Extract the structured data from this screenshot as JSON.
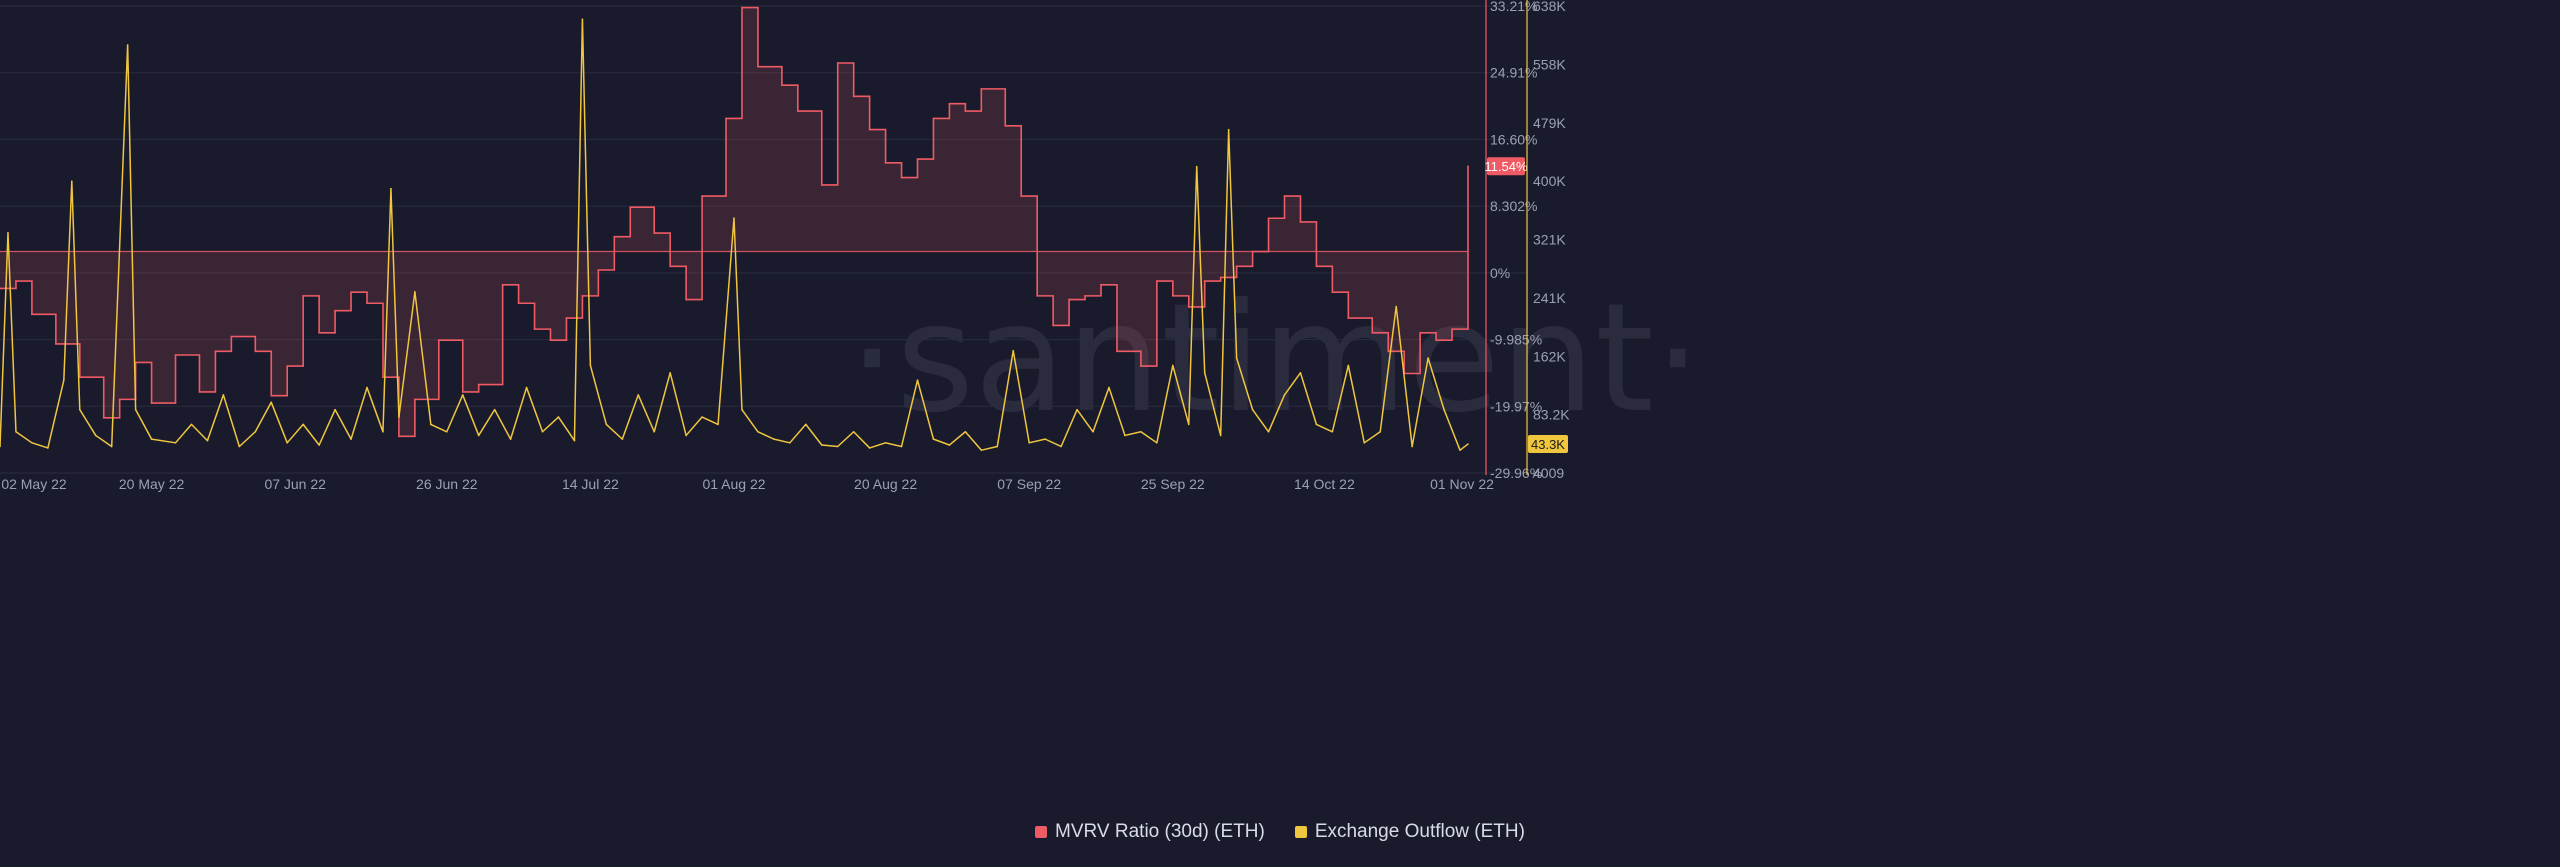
{
  "chart_data": {
    "type": "line",
    "watermark": "·santiment·",
    "x": [
      "02 May 22",
      "20 May 22",
      "07 Jun 22",
      "26 Jun 22",
      "14 Jul 22",
      "01 Aug 22",
      "20 Aug 22",
      "07 Sep 22",
      "25 Sep 22",
      "14 Oct 22",
      "01 Nov 22"
    ],
    "x_start": "2022-05-01",
    "x_end": "2022-11-01",
    "series": [
      {
        "name": "MVRV Ratio (30d) (ETH)",
        "axis": "left-scale",
        "color": "#ef5b65",
        "style": "stepped area, fill toward zero",
        "current_label": "11.54%",
        "ylim": [
          -29.96,
          33.21
        ],
        "ticks": [
          "33.21%",
          "24.91%",
          "16.60%",
          "8.302%",
          "0%",
          "-9.985%",
          "-19.97%",
          "-29.96%"
        ],
        "points": [
          [
            "2022-05-01",
            -5.0
          ],
          [
            "2022-05-03",
            -4.0
          ],
          [
            "2022-05-05",
            -8.5
          ],
          [
            "2022-05-08",
            -12.5
          ],
          [
            "2022-05-11",
            -17.0
          ],
          [
            "2022-05-14",
            -22.5
          ],
          [
            "2022-05-16",
            -20.0
          ],
          [
            "2022-05-18",
            -15.0
          ],
          [
            "2022-05-20",
            -20.5
          ],
          [
            "2022-05-23",
            -14.0
          ],
          [
            "2022-05-26",
            -19.0
          ],
          [
            "2022-05-28",
            -13.5
          ],
          [
            "2022-05-30",
            -11.5
          ],
          [
            "2022-06-02",
            -13.5
          ],
          [
            "2022-06-04",
            -19.5
          ],
          [
            "2022-06-06",
            -15.5
          ],
          [
            "2022-06-08",
            -6.0
          ],
          [
            "2022-06-10",
            -11.0
          ],
          [
            "2022-06-12",
            -8.0
          ],
          [
            "2022-06-14",
            -5.5
          ],
          [
            "2022-06-16",
            -7.0
          ],
          [
            "2022-06-18",
            -17.0
          ],
          [
            "2022-06-20",
            -25.0
          ],
          [
            "2022-06-22",
            -20.0
          ],
          [
            "2022-06-25",
            -12.0
          ],
          [
            "2022-06-28",
            -19.0
          ],
          [
            "2022-06-30",
            -18.0
          ],
          [
            "2022-07-03",
            -4.5
          ],
          [
            "2022-07-05",
            -7.0
          ],
          [
            "2022-07-07",
            -10.5
          ],
          [
            "2022-07-09",
            -12.0
          ],
          [
            "2022-07-11",
            -9.0
          ],
          [
            "2022-07-13",
            -6.0
          ],
          [
            "2022-07-15",
            -2.5
          ],
          [
            "2022-07-17",
            2.0
          ],
          [
            "2022-07-19",
            6.0
          ],
          [
            "2022-07-22",
            2.5
          ],
          [
            "2022-07-24",
            -2.0
          ],
          [
            "2022-07-26",
            -6.5
          ],
          [
            "2022-07-28",
            7.5
          ],
          [
            "2022-07-31",
            18.0
          ],
          [
            "2022-08-02",
            33.0
          ],
          [
            "2022-08-04",
            25.0
          ],
          [
            "2022-08-07",
            22.5
          ],
          [
            "2022-08-09",
            19.0
          ],
          [
            "2022-08-12",
            9.0
          ],
          [
            "2022-08-14",
            25.5
          ],
          [
            "2022-08-16",
            21.0
          ],
          [
            "2022-08-18",
            16.5
          ],
          [
            "2022-08-20",
            12.0
          ],
          [
            "2022-08-22",
            10.0
          ],
          [
            "2022-08-24",
            12.5
          ],
          [
            "2022-08-26",
            18.0
          ],
          [
            "2022-08-28",
            20.0
          ],
          [
            "2022-08-30",
            19.0
          ],
          [
            "2022-09-01",
            22.0
          ],
          [
            "2022-09-04",
            17.0
          ],
          [
            "2022-09-06",
            7.5
          ],
          [
            "2022-09-08",
            -6.0
          ],
          [
            "2022-09-10",
            -10.0
          ],
          [
            "2022-09-12",
            -6.5
          ],
          [
            "2022-09-14",
            -6.0
          ],
          [
            "2022-09-16",
            -4.5
          ],
          [
            "2022-09-18",
            -13.5
          ],
          [
            "2022-09-21",
            -15.5
          ],
          [
            "2022-09-23",
            -4.0
          ],
          [
            "2022-09-25",
            -6.0
          ],
          [
            "2022-09-27",
            -7.5
          ],
          [
            "2022-09-29",
            -4.0
          ],
          [
            "2022-10-01",
            -3.5
          ],
          [
            "2022-10-03",
            -2.0
          ],
          [
            "2022-10-05",
            0.0
          ],
          [
            "2022-10-07",
            4.5
          ],
          [
            "2022-10-09",
            7.5
          ],
          [
            "2022-10-11",
            4.0
          ],
          [
            "2022-10-13",
            -2.0
          ],
          [
            "2022-10-15",
            -5.5
          ],
          [
            "2022-10-17",
            -9.0
          ],
          [
            "2022-10-20",
            -11.0
          ],
          [
            "2022-10-22",
            -13.5
          ],
          [
            "2022-10-24",
            -16.5
          ],
          [
            "2022-10-26",
            -11.0
          ],
          [
            "2022-10-28",
            -12.0
          ],
          [
            "2022-10-30",
            -10.5
          ],
          [
            "2022-11-01",
            11.54
          ]
        ]
      },
      {
        "name": "Exchange Outflow (ETH)",
        "axis": "right-scale",
        "color": "#f0c63e",
        "style": "line",
        "current_label": "43.3K",
        "ylim": [
          4009,
          638000
        ],
        "ticks": [
          "638K",
          "558K",
          "479K",
          "400K",
          "321K",
          "241K",
          "162K",
          "83.2K",
          "4009"
        ],
        "points": [
          [
            "2022-05-01",
            40000
          ],
          [
            "2022-05-02",
            330000
          ],
          [
            "2022-05-03",
            60000
          ],
          [
            "2022-05-05",
            45000
          ],
          [
            "2022-05-07",
            38000
          ],
          [
            "2022-05-09",
            130000
          ],
          [
            "2022-05-10",
            400000
          ],
          [
            "2022-05-11",
            90000
          ],
          [
            "2022-05-13",
            55000
          ],
          [
            "2022-05-15",
            40000
          ],
          [
            "2022-05-17",
            585000
          ],
          [
            "2022-05-18",
            90000
          ],
          [
            "2022-05-20",
            50000
          ],
          [
            "2022-05-23",
            45000
          ],
          [
            "2022-05-25",
            70000
          ],
          [
            "2022-05-27",
            48000
          ],
          [
            "2022-05-29",
            110000
          ],
          [
            "2022-05-31",
            40000
          ],
          [
            "2022-06-02",
            60000
          ],
          [
            "2022-06-04",
            100000
          ],
          [
            "2022-06-06",
            45000
          ],
          [
            "2022-06-08",
            70000
          ],
          [
            "2022-06-10",
            42000
          ],
          [
            "2022-06-12",
            90000
          ],
          [
            "2022-06-14",
            50000
          ],
          [
            "2022-06-16",
            120000
          ],
          [
            "2022-06-18",
            60000
          ],
          [
            "2022-06-19",
            390000
          ],
          [
            "2022-06-20",
            80000
          ],
          [
            "2022-06-22",
            250000
          ],
          [
            "2022-06-24",
            70000
          ],
          [
            "2022-06-26",
            60000
          ],
          [
            "2022-06-28",
            110000
          ],
          [
            "2022-06-30",
            55000
          ],
          [
            "2022-07-02",
            90000
          ],
          [
            "2022-07-04",
            50000
          ],
          [
            "2022-07-06",
            120000
          ],
          [
            "2022-07-08",
            60000
          ],
          [
            "2022-07-10",
            80000
          ],
          [
            "2022-07-12",
            48000
          ],
          [
            "2022-07-13",
            620000
          ],
          [
            "2022-07-14",
            150000
          ],
          [
            "2022-07-16",
            70000
          ],
          [
            "2022-07-18",
            50000
          ],
          [
            "2022-07-20",
            110000
          ],
          [
            "2022-07-22",
            60000
          ],
          [
            "2022-07-24",
            140000
          ],
          [
            "2022-07-26",
            55000
          ],
          [
            "2022-07-28",
            80000
          ],
          [
            "2022-07-30",
            70000
          ],
          [
            "2022-08-01",
            350000
          ],
          [
            "2022-08-02",
            90000
          ],
          [
            "2022-08-04",
            60000
          ],
          [
            "2022-08-06",
            50000
          ],
          [
            "2022-08-08",
            45000
          ],
          [
            "2022-08-10",
            70000
          ],
          [
            "2022-08-12",
            42000
          ],
          [
            "2022-08-14",
            40000
          ],
          [
            "2022-08-16",
            60000
          ],
          [
            "2022-08-18",
            38000
          ],
          [
            "2022-08-20",
            45000
          ],
          [
            "2022-08-22",
            40000
          ],
          [
            "2022-08-24",
            130000
          ],
          [
            "2022-08-26",
            50000
          ],
          [
            "2022-08-28",
            42000
          ],
          [
            "2022-08-30",
            60000
          ],
          [
            "2022-09-01",
            35000
          ],
          [
            "2022-09-03",
            40000
          ],
          [
            "2022-09-05",
            170000
          ],
          [
            "2022-09-07",
            45000
          ],
          [
            "2022-09-09",
            50000
          ],
          [
            "2022-09-11",
            40000
          ],
          [
            "2022-09-13",
            90000
          ],
          [
            "2022-09-15",
            60000
          ],
          [
            "2022-09-17",
            120000
          ],
          [
            "2022-09-19",
            55000
          ],
          [
            "2022-09-21",
            60000
          ],
          [
            "2022-09-23",
            45000
          ],
          [
            "2022-09-25",
            150000
          ],
          [
            "2022-09-27",
            70000
          ],
          [
            "2022-09-28",
            420000
          ],
          [
            "2022-09-29",
            140000
          ],
          [
            "2022-10-01",
            55000
          ],
          [
            "2022-10-02",
            470000
          ],
          [
            "2022-10-03",
            160000
          ],
          [
            "2022-10-05",
            90000
          ],
          [
            "2022-10-07",
            60000
          ],
          [
            "2022-10-09",
            110000
          ],
          [
            "2022-10-11",
            140000
          ],
          [
            "2022-10-13",
            70000
          ],
          [
            "2022-10-15",
            60000
          ],
          [
            "2022-10-17",
            150000
          ],
          [
            "2022-10-19",
            45000
          ],
          [
            "2022-10-21",
            60000
          ],
          [
            "2022-10-23",
            230000
          ],
          [
            "2022-10-25",
            40000
          ],
          [
            "2022-10-27",
            160000
          ],
          [
            "2022-10-29",
            90000
          ],
          [
            "2022-10-31",
            35000
          ],
          [
            "2022-11-01",
            43300
          ]
        ]
      }
    ],
    "grid": true,
    "legend_position": "bottom-center"
  }
}
